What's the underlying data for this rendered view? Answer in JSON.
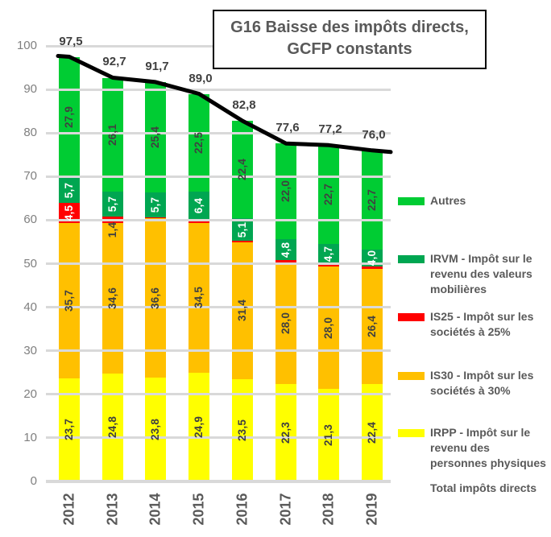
{
  "title": {
    "line1": "G16 Baisse des impôts directs,",
    "line2": "GCFP constants"
  },
  "chart_data": {
    "type": "bar",
    "stacked": true,
    "title": "G16 Baisse des impôts directs, GCFP constants",
    "categories": [
      "2012",
      "2013",
      "2014",
      "2015",
      "2016",
      "2017",
      "2018",
      "2019"
    ],
    "ylim": [
      0,
      100
    ],
    "yticks": [
      0,
      10,
      20,
      30,
      40,
      50,
      60,
      70,
      80,
      90,
      100
    ],
    "grid": true,
    "legend_position": "right",
    "series": [
      {
        "name": "IRPP  - Impôt sur le revenu des personnes physiques",
        "color": "#FFFF00",
        "label_color": "#404040",
        "values": [
          23.7,
          24.8,
          23.8,
          24.9,
          23.5,
          22.3,
          21.3,
          22.4
        ],
        "labels": [
          "23,7",
          "24,8",
          "23,8",
          "24,9",
          "23,5",
          "22,3",
          "21,3",
          "22,4"
        ]
      },
      {
        "name": "IS30 - Impôt sur les sociétés à 30%",
        "color": "#FFC000",
        "label_color": "#404040",
        "values": [
          35.7,
          34.6,
          36.6,
          34.5,
          31.4,
          28.0,
          28.0,
          26.4
        ],
        "labels": [
          "35,7",
          "34,6",
          "36,6",
          "34,5",
          "31,4",
          "28,0",
          "28,0",
          "26,4"
        ]
      },
      {
        "name": "IS25 - Impôt sur les sociétés à 25%",
        "color": "#FF0000",
        "label_color": "#FFFFFF",
        "values": [
          4.5,
          1.4,
          0.2,
          0.7,
          0.4,
          0.5,
          0.5,
          0.5
        ],
        "labels": [
          "4,5",
          "1,4",
          null,
          null,
          null,
          null,
          null,
          null
        ]
      },
      {
        "name": "IRVM - Impôt sur le revenu des valeurs mobilières",
        "color": "#00A651",
        "label_color": "#FFFFFF",
        "values": [
          5.7,
          5.7,
          5.7,
          6.4,
          5.1,
          4.8,
          4.7,
          4.0
        ],
        "labels": [
          "5,7",
          "5,7",
          "5,7",
          "6,4",
          "5,1",
          "4,8",
          "4,7",
          "4,0"
        ]
      },
      {
        "name": "Autres",
        "color": "#00CC33",
        "label_color": "#404040",
        "values": [
          27.9,
          26.1,
          25.4,
          22.5,
          22.4,
          22.0,
          22.7,
          22.7
        ],
        "labels": [
          "27,9",
          "26,1",
          "25,4",
          "22,5",
          "22,4",
          "22,0",
          "22,7",
          "22,7"
        ]
      }
    ],
    "line": {
      "name": "Total impôts directs",
      "color": "#000000",
      "values": [
        97.5,
        92.7,
        91.7,
        89.0,
        82.8,
        77.6,
        77.2,
        76.0
      ],
      "labels": [
        "97,5",
        "92,7",
        "91,7",
        "89,0",
        "82,8",
        "77,6",
        "77,2",
        "76,0"
      ]
    }
  },
  "legend": {
    "items": [
      {
        "label": "Autres",
        "color": "#00CC33"
      },
      {
        "label": "IRVM - Impôt sur le revenu des valeurs mobilières",
        "color": "#00A651"
      },
      {
        "label": "IS25 - Impôt sur les sociétés à 25%",
        "color": "#FF0000"
      },
      {
        "label": "IS30 - Impôt sur les sociétés à 30%",
        "color": "#FFC000"
      },
      {
        "label": "IRPP  - Impôt sur le revenu des personnes physiques",
        "color": "#FFFF00"
      },
      {
        "label": "Total impôts directs",
        "color": "#000000"
      }
    ]
  }
}
